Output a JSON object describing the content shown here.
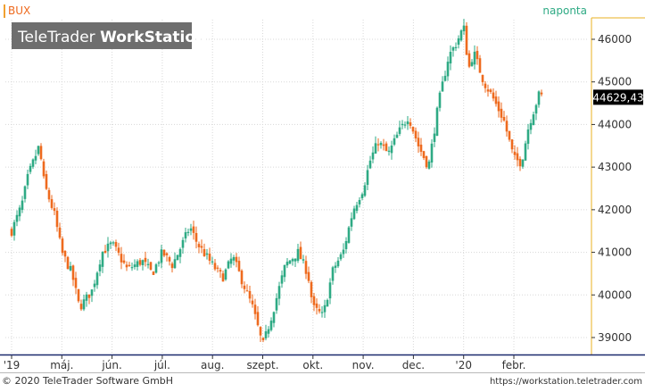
{
  "header": {
    "symbol": "BUX",
    "interval": "naponta",
    "watermark_light": "TeleTrader ",
    "watermark_bold": "WorkStation"
  },
  "footer": {
    "copyright": "© 2020 TeleTrader Software GmbH",
    "url": "https://workstation.teletrader.com"
  },
  "colors": {
    "up": "#2eaa84",
    "down": "#ee6a1e",
    "grid": "#d8d8d8",
    "axis_right": "#e8b020",
    "axis_bottom": "#1c2a6e",
    "accent": "#f0a030",
    "price_label_bg": "#000000"
  },
  "chart_data": {
    "type": "candlestick",
    "title": "BUX",
    "interval": "naponta",
    "last_value": 44629.43,
    "last_value_label": "44629,43",
    "ylim": [
      38700,
      46500
    ],
    "y_ticks": [
      39000,
      40000,
      41000,
      42000,
      43000,
      44000,
      45000,
      46000
    ],
    "y_tick_labels": [
      "39000",
      "40000",
      "41000",
      "42000",
      "43000",
      "44000",
      "45000",
      "46000"
    ],
    "x_tick_labels": [
      "'19",
      "máj.",
      "jún.",
      "júl.",
      "aug.",
      "szept.",
      "okt.",
      "nov.",
      "dec.",
      "'20",
      "febr."
    ],
    "x_tick_months": [
      0,
      1,
      2,
      3,
      4,
      5,
      6,
      7,
      8,
      9,
      10
    ],
    "x_start_month": "2019-04",
    "close_path": [
      [
        0.0,
        41500
      ],
      [
        0.2,
        42100
      ],
      [
        0.33,
        42800
      ],
      [
        0.55,
        43500
      ],
      [
        0.65,
        42600
      ],
      [
        0.85,
        41900
      ],
      [
        1.0,
        41000
      ],
      [
        1.2,
        40500
      ],
      [
        1.35,
        39700
      ],
      [
        1.6,
        40100
      ],
      [
        1.8,
        41000
      ],
      [
        2.0,
        41200
      ],
      [
        2.3,
        40600
      ],
      [
        2.6,
        40800
      ],
      [
        2.8,
        40500
      ],
      [
        3.0,
        41000
      ],
      [
        3.2,
        40700
      ],
      [
        3.4,
        41200
      ],
      [
        3.55,
        41600
      ],
      [
        3.7,
        41200
      ],
      [
        4.0,
        40700
      ],
      [
        4.2,
        40400
      ],
      [
        4.4,
        40900
      ],
      [
        4.6,
        40300
      ],
      [
        4.8,
        39700
      ],
      [
        5.0,
        38800
      ],
      [
        5.2,
        39600
      ],
      [
        5.45,
        40700
      ],
      [
        5.7,
        41000
      ],
      [
        5.9,
        40500
      ],
      [
        6.0,
        39700
      ],
      [
        6.2,
        39500
      ],
      [
        6.4,
        40600
      ],
      [
        6.6,
        41000
      ],
      [
        6.8,
        42000
      ],
      [
        7.0,
        42500
      ],
      [
        7.15,
        43200
      ],
      [
        7.3,
        43600
      ],
      [
        7.5,
        43300
      ],
      [
        7.7,
        43800
      ],
      [
        7.9,
        44200
      ],
      [
        8.1,
        43500
      ],
      [
        8.3,
        43000
      ],
      [
        8.5,
        44500
      ],
      [
        8.7,
        45600
      ],
      [
        8.85,
        45900
      ],
      [
        9.0,
        46300
      ],
      [
        9.1,
        45300
      ],
      [
        9.2,
        45700
      ],
      [
        9.4,
        45000
      ],
      [
        9.55,
        44700
      ],
      [
        9.8,
        44100
      ],
      [
        10.0,
        43200
      ],
      [
        10.15,
        43100
      ],
      [
        10.3,
        44000
      ],
      [
        10.5,
        44700
      ],
      [
        10.6,
        44629
      ]
    ]
  }
}
